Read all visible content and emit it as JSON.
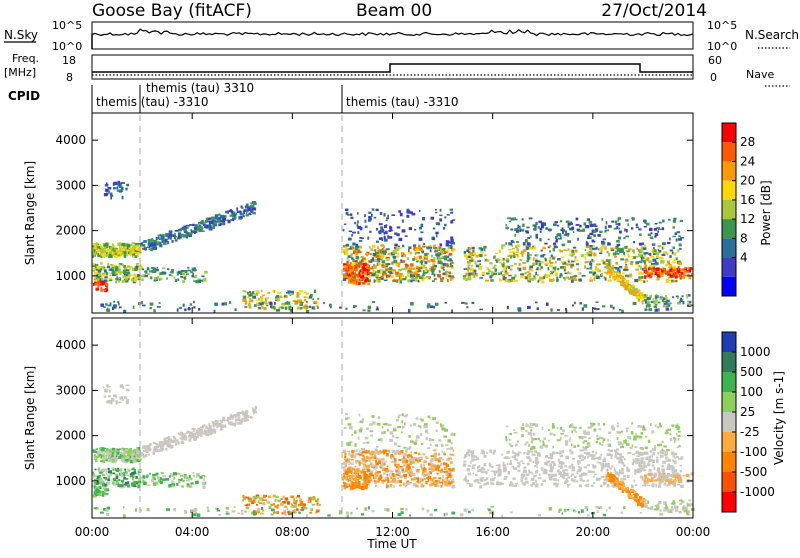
{
  "header": {
    "radar_title": "Goose Bay (fitACF)",
    "beam": "Beam 00",
    "date": "27/Oct/2014"
  },
  "noise_panel": {
    "left_label": "N.Sky",
    "right_label": "N.Search",
    "left_ticks": [
      "10^5",
      "10^0"
    ],
    "right_ticks": [
      "10^5",
      "10^0"
    ]
  },
  "freq_panel": {
    "left_label_line1": "Freq.",
    "left_label_line2": "[MHz]",
    "right_label": "Nave",
    "left_ticks": [
      "18",
      "8"
    ],
    "right_ticks": [
      "60",
      "0"
    ]
  },
  "cpid_panel": {
    "label": "CPID",
    "segments": [
      {
        "text": "themis (tau) -3310",
        "start_hour": 0.0
      },
      {
        "text": "themis (tau) 3310",
        "start_hour": 1.9
      },
      {
        "text": "themis (tau) -3310",
        "start_hour": 10.0
      }
    ]
  },
  "chart_data": [
    {
      "type": "heatmap",
      "name": "power",
      "ylabel": "Slant Range [km]",
      "colorbar_label": "Power [dB]",
      "colorbar_ticks": [
        "28",
        "24",
        "20",
        "16",
        "12",
        "8",
        "4"
      ],
      "colorbar_colors": [
        "#ff0000",
        "#ff5a00",
        "#ff9900",
        "#ffd700",
        "#a8c83c",
        "#3c9650",
        "#2a6e9a",
        "#3c3cc8",
        "#0000ff"
      ],
      "yticks": [
        "4000",
        "3000",
        "2000",
        "1000"
      ],
      "ylim": [
        180,
        4600
      ]
    },
    {
      "type": "heatmap",
      "name": "velocity",
      "ylabel": "Slant Range [km]",
      "xlabel": "Time UT",
      "colorbar_label": "Velocity [m s-1]",
      "colorbar_ticks": [
        "1000",
        "500",
        "100",
        "25",
        "-25",
        "-100",
        "-500",
        "-1000"
      ],
      "colorbar_colors": [
        "#1e3cb4",
        "#2f7d5a",
        "#3cb450",
        "#8cd25a",
        "#c8c8c0",
        "#ffaa3c",
        "#ff8200",
        "#ff5000",
        "#ff0000"
      ],
      "yticks": [
        "4000",
        "3000",
        "2000",
        "1000"
      ],
      "xticks": [
        "00:00",
        "04:00",
        "08:00",
        "12:00",
        "16:00",
        "20:00",
        "00:00"
      ],
      "xlim_hours": [
        0,
        24
      ],
      "ylim": [
        180,
        4600
      ]
    }
  ],
  "colors": {
    "power_scale": [
      "#0000ff",
      "#3c3cc8",
      "#2a6e9a",
      "#3c9650",
      "#a8c83c",
      "#ffd700",
      "#ff9900",
      "#ff5a00",
      "#ff0000"
    ],
    "velocity_scale": [
      "#ff0000",
      "#ff5000",
      "#ff8200",
      "#ffaa3c",
      "#c8c8c0",
      "#8cd25a",
      "#3cb450",
      "#2f7d5a",
      "#1e3cb4"
    ]
  }
}
